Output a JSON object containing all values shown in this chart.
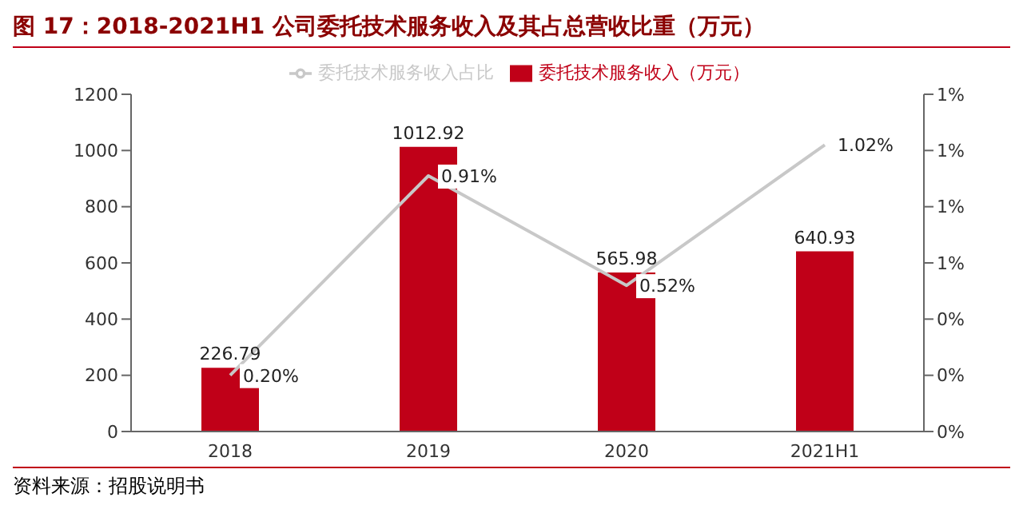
{
  "chart_data": {
    "type": "bar",
    "title": "图 17：2018-2021H1 公司委托技术服务收入及其占总营收比重（万元）",
    "categories": [
      "2018",
      "2019",
      "2020",
      "2021H1"
    ],
    "series": [
      {
        "name": "委托技术服务收入（万元）",
        "color": "#c00018",
        "values": [
          226.79,
          1012.92,
          565.98,
          640.93
        ],
        "value_labels": [
          "226.79",
          "1012.92",
          "565.98",
          "640.93"
        ]
      },
      {
        "name": "委托技术服务收入占比",
        "type": "line",
        "axis": "y2",
        "color": "#c8c8c8",
        "values": [
          0.2,
          0.91,
          0.52,
          1.02
        ],
        "value_labels": [
          "0.20%",
          "0.91%",
          "0.52%",
          "1.02%"
        ]
      }
    ],
    "ylim": [
      0,
      1200
    ],
    "yticks": [
      0,
      200,
      400,
      600,
      800,
      1000,
      1200
    ],
    "y2lim": [
      0,
      1.2
    ],
    "y2ticks": [
      {
        "value": 0,
        "label": "0%"
      },
      {
        "value": 0.2,
        "label": "0%"
      },
      {
        "value": 0.4,
        "label": "0%"
      },
      {
        "value": 0.6,
        "label": "1%"
      },
      {
        "value": 0.8,
        "label": "1%"
      },
      {
        "value": 1.0,
        "label": "1%"
      },
      {
        "value": 1.2,
        "label": "1%"
      }
    ],
    "legend": "top",
    "grid": false,
    "marker": "none",
    "annotations": [
      "资料来源：招股说明书"
    ]
  }
}
